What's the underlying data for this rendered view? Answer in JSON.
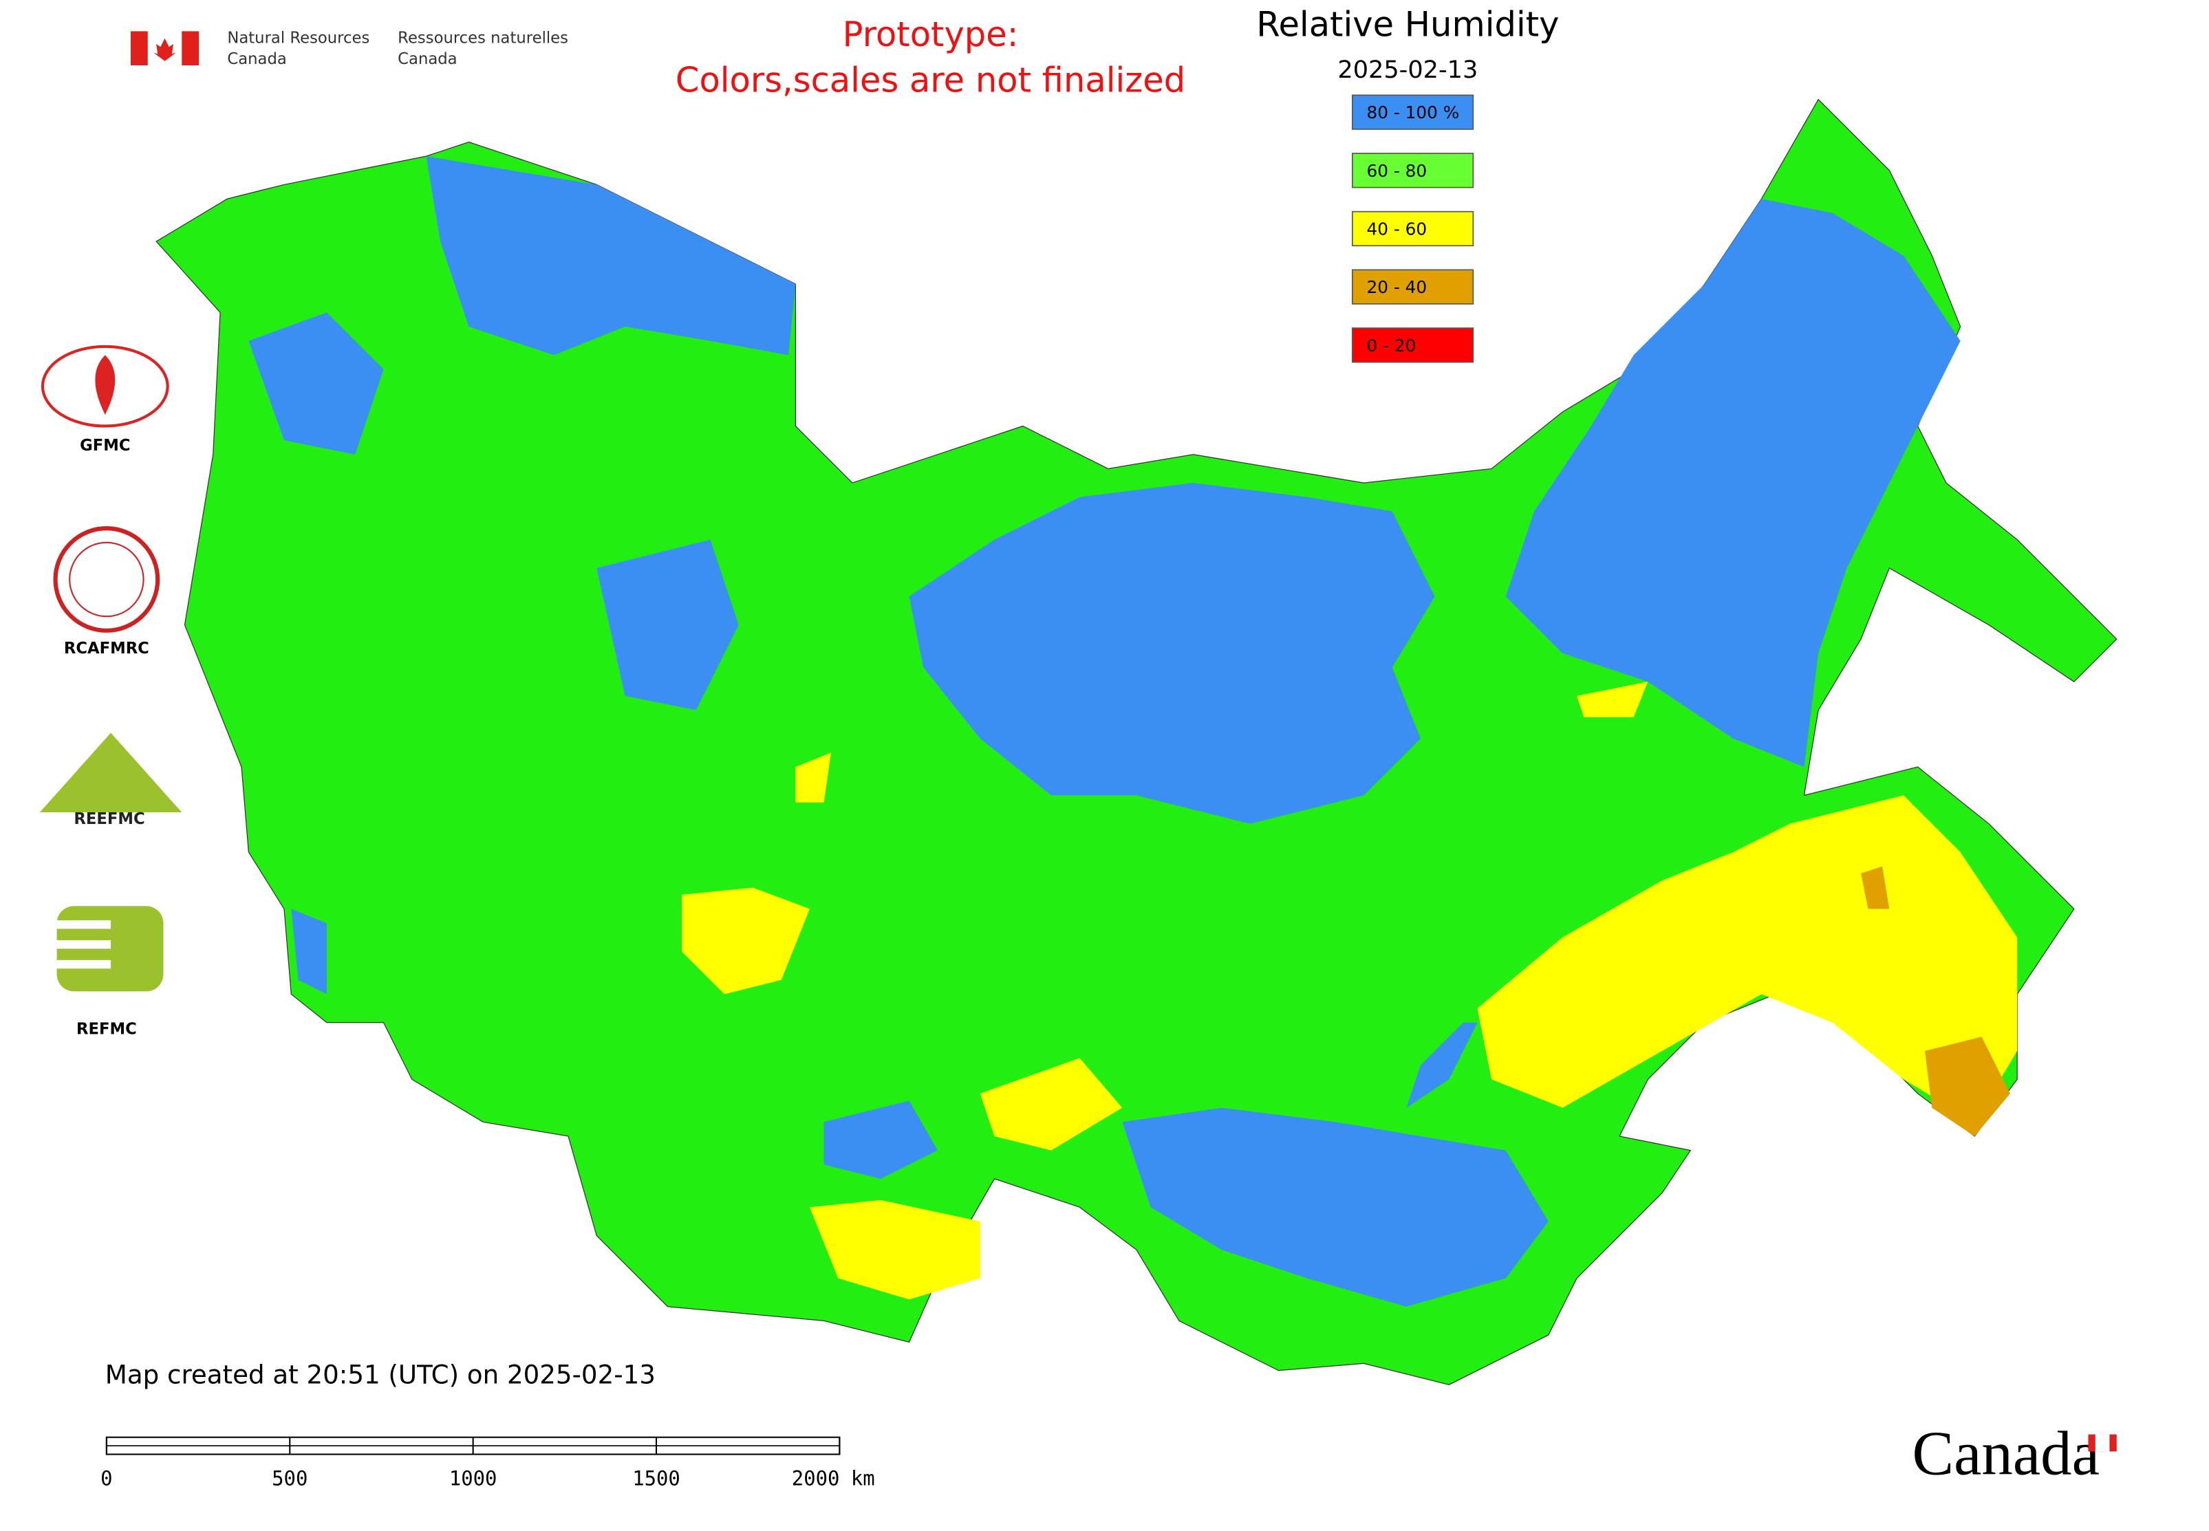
{
  "header": {
    "agency_en": [
      "Natural Resources",
      "Canada"
    ],
    "agency_fr": [
      "Ressources naturelles",
      "Canada"
    ],
    "notice": [
      "Prototype:",
      "Colors,scales are not finalized"
    ]
  },
  "map": {
    "title": "Relative Humidity",
    "date": "2025-02-13",
    "legend": [
      {
        "label": "80 - 100 %",
        "color": "#3b8ef2"
      },
      {
        "label": "60 - 80",
        "color": "#66ff33"
      },
      {
        "label": "40 - 60",
        "color": "#ffff00"
      },
      {
        "label": "20 - 40",
        "color": "#e0a000"
      },
      {
        "label": "0 - 20",
        "color": "#ff0000"
      }
    ]
  },
  "logos": [
    "GFMC",
    "RCAFMRC",
    "REEFMC",
    "REFMC"
  ],
  "footer": {
    "created": "Map created at 20:51 (UTC) on 2025-02-13",
    "scale_bar": {
      "ticks": [
        0,
        500,
        1000,
        1500,
        2000
      ],
      "unit": "km"
    },
    "wordmark": "Canada"
  }
}
